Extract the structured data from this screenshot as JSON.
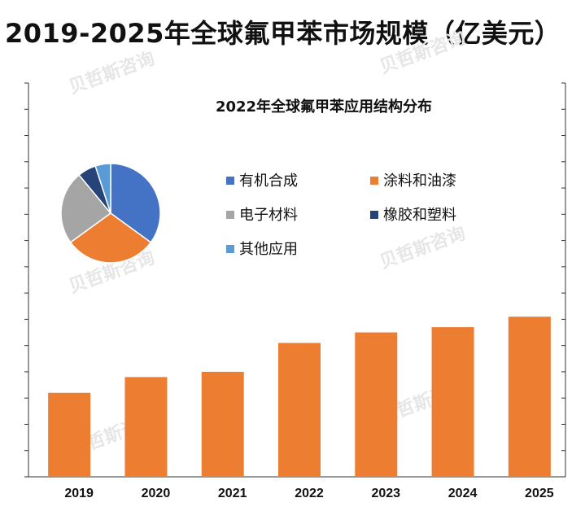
{
  "title": "2019-2025年全球氟甲苯市场规模（亿美元）",
  "watermark_text": "贝哲斯咨询",
  "chart_data": [
    {
      "type": "bar",
      "title": "2019-2025年全球氟甲苯市场规模（亿美元）",
      "categories": [
        "2019",
        "2020",
        "2021",
        "2022",
        "2023",
        "2024",
        "2025"
      ],
      "values": [
        3.2,
        3.8,
        4.0,
        5.1,
        5.5,
        5.7,
        6.1
      ],
      "ylim": [
        0,
        15
      ],
      "xlabel": "",
      "ylabel": "",
      "color": "#ED7D31",
      "axis_color": "#333333"
    },
    {
      "type": "pie",
      "title": "2022年全球氟甲苯应用结构分布",
      "legend_position": "right",
      "slices": [
        {
          "label": "有机合成",
          "value": 35,
          "color": "#4472C4"
        },
        {
          "label": "涂料和油漆",
          "value": 30,
          "color": "#ED7D31"
        },
        {
          "label": "电子材料",
          "value": 24,
          "color": "#A5A5A5"
        },
        {
          "label": "橡胶和塑料",
          "value": 6,
          "color": "#264478"
        },
        {
          "label": "其他应用",
          "value": 5,
          "color": "#5B9BD5"
        }
      ]
    }
  ]
}
